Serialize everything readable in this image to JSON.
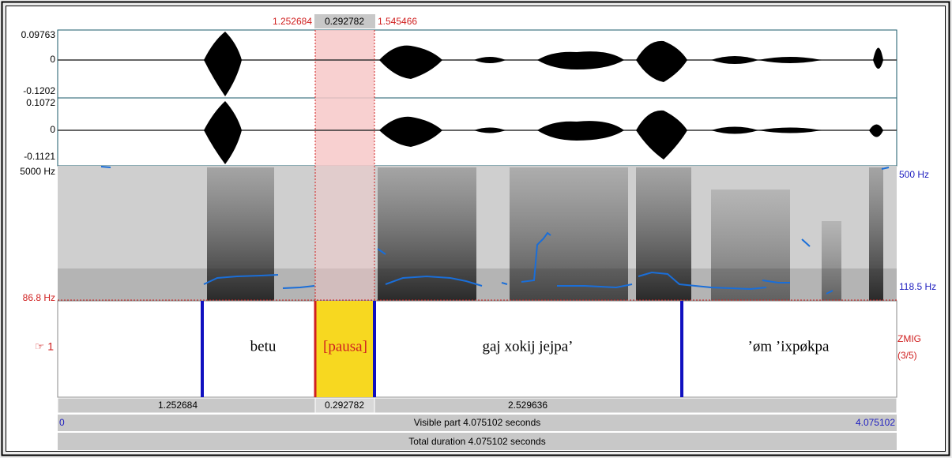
{
  "selection": {
    "start": "1.252684",
    "duration": "0.292782",
    "end": "1.545466"
  },
  "channels": [
    {
      "max": "0.09763",
      "zero": "0",
      "min": "-0.1202"
    },
    {
      "max": "0.1072",
      "zero": "0",
      "min": "-0.1121"
    }
  ],
  "spectrogram": {
    "freq_max": "5000 Hz",
    "freq_min": "86.8 Hz",
    "pitch_max": "500 Hz",
    "pitch_min": "118.5 Hz"
  },
  "tier": {
    "number": "☞ 1",
    "name": "ZMIG",
    "position": "(3/5)",
    "intervals": [
      "betu",
      "[pausa]",
      "gaj xokij jejpa’",
      "’øm ’ixpøkpa"
    ]
  },
  "durations": [
    "1.252684",
    "0.292782",
    "2.529636"
  ],
  "visible": {
    "start": "0",
    "label": "Visible part 4.075102 seconds",
    "end": "4.075102"
  },
  "total": "Total duration 4.075102 seconds"
}
